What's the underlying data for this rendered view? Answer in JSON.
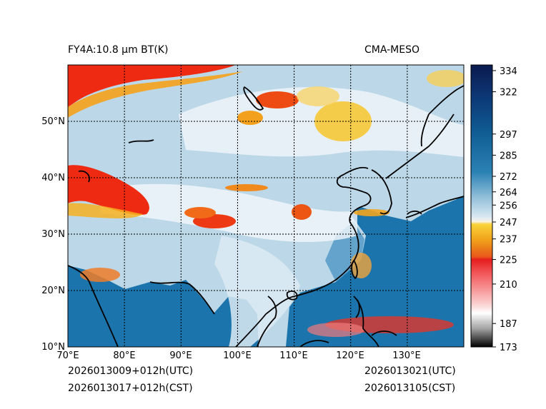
{
  "title_left": "FY4A:10.8 µm BT(K)",
  "title_right": "CMA-MESO",
  "map": {
    "lon_labels": [
      "70°E",
      "80°E",
      "90°E",
      "100°E",
      "110°E",
      "120°E",
      "130°E"
    ],
    "lon_values": [
      70,
      80,
      90,
      100,
      110,
      120,
      130
    ],
    "lat_labels": [
      "10°N",
      "20°N",
      "30°N",
      "40°N",
      "50°N"
    ],
    "lat_values": [
      10,
      20,
      30,
      40,
      50
    ],
    "lon_range": [
      70,
      140
    ],
    "lat_range": [
      10,
      60
    ]
  },
  "colorbar": {
    "labels": [
      "334",
      "322",
      "297",
      "285",
      "272",
      "264",
      "256",
      "247",
      "237",
      "225",
      "210",
      "187",
      "173"
    ],
    "values": [
      334,
      322,
      297,
      285,
      272,
      264,
      256,
      247,
      237,
      225,
      210,
      187,
      173
    ],
    "range": [
      173,
      336
    ]
  },
  "footer": {
    "init_utc": "2026013009+012h(UTC)",
    "init_cst": "2026013017+012h(CST)",
    "valid_utc": "2026013021(UTC)",
    "valid_cst": "2026013105(CST)"
  },
  "colors": {
    "ocean": "#1c74ad",
    "land_cool": "#bcd8e8",
    "cloud": "#eef5f9",
    "warm_cloud": "#f6c836",
    "cold_top": "#ee2b12"
  }
}
